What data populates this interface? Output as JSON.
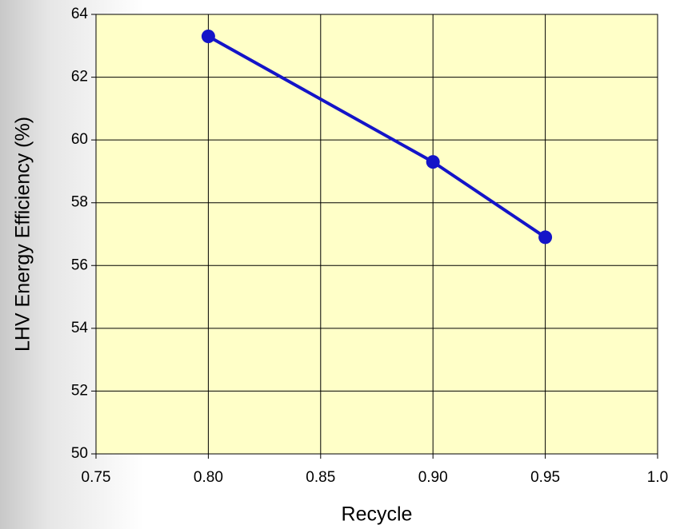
{
  "chart_data": {
    "type": "line",
    "x_label": "Recycle",
    "y_label": "LHV Energy Efficiency (%)",
    "x": [
      0.8,
      0.9,
      0.95
    ],
    "series": [
      {
        "name": null,
        "color": "#1414c8",
        "values": [
          63.3,
          59.3,
          56.9
        ]
      }
    ],
    "xlim": [
      0.75,
      1.0
    ],
    "xticks": [
      0.75,
      {
        "value": 0.8,
        "label": "0.80"
      },
      0.85,
      {
        "value": 0.9,
        "label": "0.90"
      },
      0.95,
      {
        "value": 1.0,
        "label": "1.0"
      }
    ],
    "ylim": [
      50,
      64
    ],
    "yticks": [
      50,
      52,
      54,
      56,
      58,
      60,
      62,
      64
    ],
    "grid": true,
    "plot_background": "#ffffc8"
  }
}
